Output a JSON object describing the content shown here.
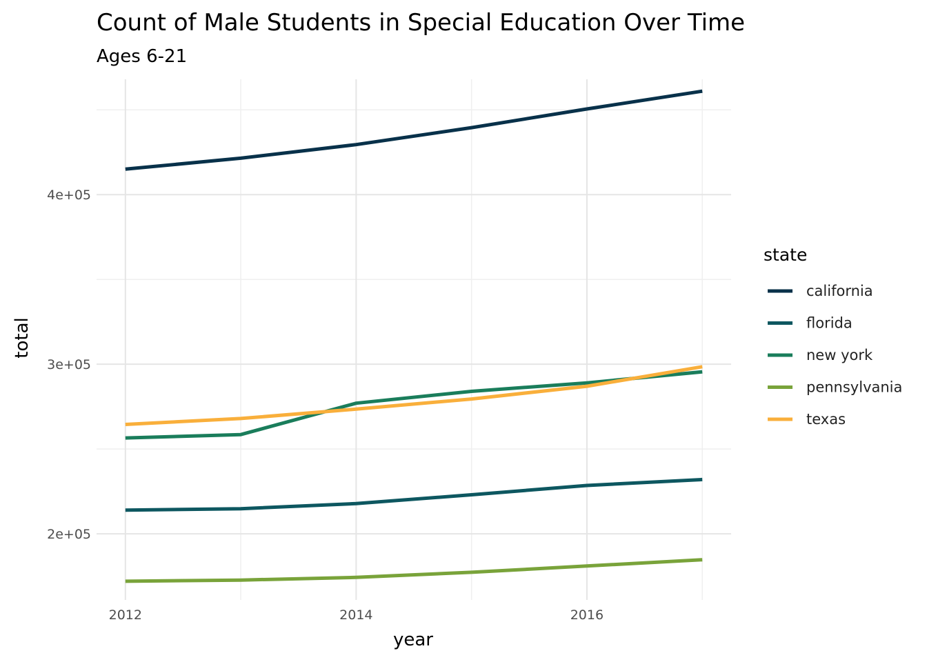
{
  "chart_data": {
    "type": "line",
    "title": "Count of Male Students in Special Education Over Time",
    "subtitle": "Ages 6-21",
    "xlabel": "year",
    "ylabel": "total",
    "x": [
      2012,
      2013,
      2014,
      2015,
      2016,
      2017
    ],
    "xlim": [
      2011.75,
      2017.25
    ],
    "ylim": [
      161000,
      468000
    ],
    "x_ticks": [
      2012,
      2014,
      2016
    ],
    "x_tick_labels": [
      "2012",
      "2014",
      "2016"
    ],
    "y_ticks": [
      200000,
      300000,
      400000
    ],
    "y_tick_labels": [
      "2e+05",
      "3e+05",
      "4e+05"
    ],
    "grid": true,
    "legend_title": "state",
    "legend_position": "right",
    "series": [
      {
        "name": "california",
        "color": "#08314a",
        "values": [
          415000,
          421500,
          429500,
          439500,
          450500,
          461000
        ]
      },
      {
        "name": "florida",
        "color": "#0d5760",
        "values": [
          214000,
          214800,
          217800,
          223000,
          228500,
          232000
        ]
      },
      {
        "name": "new york",
        "color": "#1a7d5b",
        "values": [
          256500,
          258500,
          277000,
          284000,
          289000,
          295500
        ]
      },
      {
        "name": "pennsylvania",
        "color": "#79a33a",
        "values": [
          172000,
          172700,
          174300,
          177300,
          181000,
          184700
        ]
      },
      {
        "name": "texas",
        "color": "#f9af3b",
        "values": [
          264500,
          268000,
          273500,
          279500,
          287000,
          298500
        ]
      }
    ]
  }
}
